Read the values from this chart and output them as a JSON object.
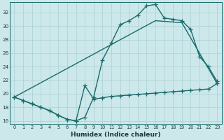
{
  "xlabel": "Humidex (Indice chaleur)",
  "bg_color": "#cce8ea",
  "grid_color": "#aad0d4",
  "line_color": "#1a6b6b",
  "xlim": [
    -0.5,
    23.5
  ],
  "ylim": [
    15.5,
    33.5
  ],
  "yticks": [
    16,
    18,
    20,
    22,
    24,
    26,
    28,
    30,
    32
  ],
  "xticks": [
    0,
    1,
    2,
    3,
    4,
    5,
    6,
    7,
    8,
    9,
    10,
    11,
    12,
    13,
    14,
    15,
    16,
    17,
    18,
    19,
    20,
    21,
    22,
    23
  ],
  "series1_x": [
    0,
    1,
    2,
    3,
    4,
    5,
    6,
    7,
    8,
    9,
    10,
    11,
    12,
    13,
    14,
    15,
    16,
    17,
    18,
    19,
    20,
    21,
    22,
    23
  ],
  "series1_y": [
    19.5,
    19.0,
    18.5,
    18.0,
    17.5,
    16.8,
    16.2,
    16.0,
    21.2,
    19.2,
    19.4,
    19.6,
    19.7,
    19.8,
    19.9,
    20.0,
    20.1,
    20.2,
    20.3,
    20.4,
    20.5,
    20.6,
    20.7,
    21.5
  ],
  "series2_x": [
    0,
    1,
    2,
    3,
    4,
    5,
    6,
    7,
    8,
    9,
    10,
    11,
    12,
    13,
    14,
    15,
    16,
    17,
    18,
    19,
    20,
    21,
    22,
    23
  ],
  "series2_y": [
    19.5,
    19.0,
    18.5,
    18.0,
    17.5,
    16.8,
    16.2,
    16.0,
    16.5,
    19.5,
    25.0,
    27.5,
    30.2,
    30.8,
    31.6,
    33.0,
    33.2,
    31.2,
    31.0,
    30.8,
    29.5,
    25.5,
    24.0,
    21.8
  ],
  "series3_x": [
    0,
    16,
    19,
    23
  ],
  "series3_y": [
    19.5,
    30.8,
    30.5,
    21.5
  ]
}
